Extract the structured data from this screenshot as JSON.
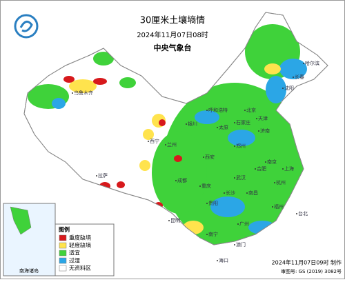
{
  "header": {
    "title": "30厘米土壤墒情",
    "datetime": "2024年11月07日08时",
    "source": "中央气象台"
  },
  "legend": {
    "title": "图例",
    "items": [
      {
        "label": "重度缺墒",
        "color": "#d7191c"
      },
      {
        "label": "轻度缺墒",
        "color": "#ffe34d"
      },
      {
        "label": "适宜",
        "color": "#3fd23a"
      },
      {
        "label": "过湿",
        "color": "#2ba6e6"
      },
      {
        "label": "无资料区",
        "color": "#ffffff"
      }
    ]
  },
  "inset": {
    "label": "南海诸岛"
  },
  "cities": [
    "哈尔滨",
    "长春",
    "沈阳",
    "北京",
    "天津",
    "石家庄",
    "太原",
    "济南",
    "郑州",
    "西安",
    "兰州",
    "银川",
    "西宁",
    "呼和浩特",
    "乌鲁木齐",
    "拉萨",
    "成都",
    "重庆",
    "贵阳",
    "昆明",
    "武汉",
    "长沙",
    "南昌",
    "合肥",
    "南京",
    "上海",
    "杭州",
    "福州",
    "广州",
    "南宁",
    "澳门",
    "台北",
    "海口"
  ],
  "footer": {
    "made": "2024年11月07日09时 制作",
    "approval": "审图号: GS (2019) 3082号"
  }
}
